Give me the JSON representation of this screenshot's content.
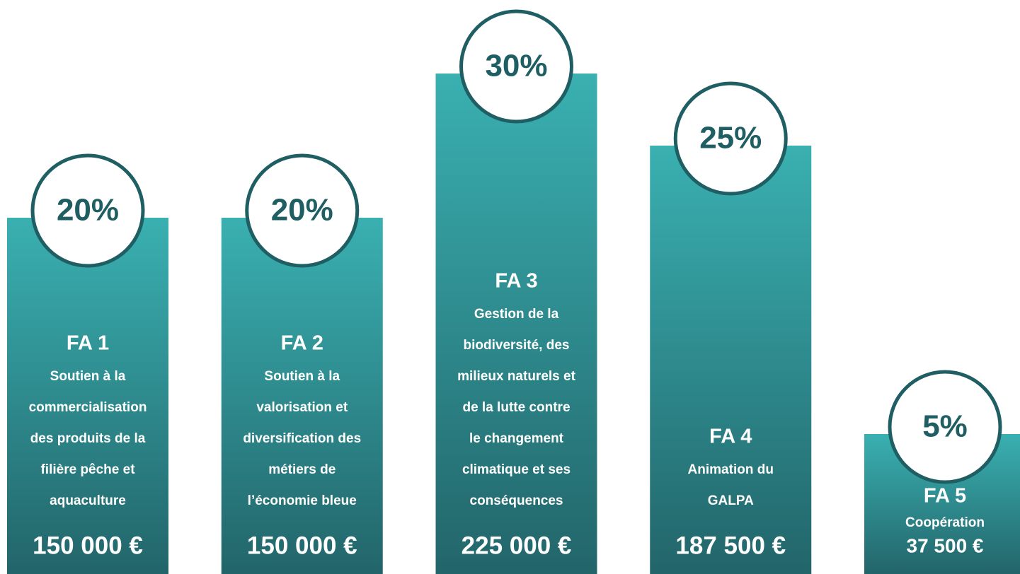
{
  "chart_data": {
    "type": "bar",
    "categories": [
      "FA 1",
      "FA 2",
      "FA 3",
      "FA 4",
      "FA 5"
    ],
    "values": [
      20,
      20,
      30,
      25,
      5
    ],
    "value_labels": [
      "20%",
      "20%",
      "30%",
      "25%",
      "5%"
    ],
    "descriptions": [
      [
        "Soutien à la",
        "commercialisation",
        "des produits de la",
        "filière pêche et",
        "aquaculture"
      ],
      [
        "Soutien à la",
        "valorisation et",
        "diversification des",
        "métiers de",
        "l’économie bleue"
      ],
      [
        "Gestion de la",
        "biodiversité, des",
        "milieux naturels et",
        "de la lutte contre",
        "le changement",
        "climatique et ses",
        "conséquences"
      ],
      [
        "Animation du",
        "GALPA"
      ],
      [
        "Coopération"
      ]
    ],
    "amounts": [
      "150 000 €",
      "150 000 €",
      "225 000 €",
      "187 500 €",
      "37 500 €"
    ],
    "color_top": "#3ab0b1",
    "color_bottom": "#22656a",
    "circle_color": "#1f5e63"
  }
}
